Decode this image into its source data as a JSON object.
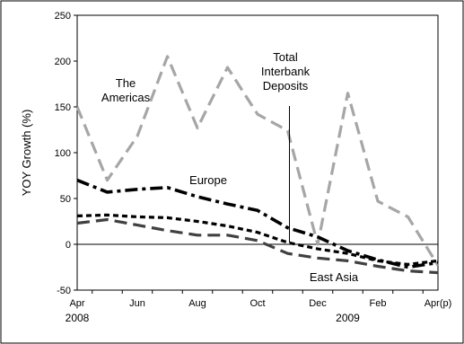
{
  "chart_data": {
    "type": "line",
    "title": "",
    "ylabel": "YOY Growth (%)",
    "ylim": [
      -50,
      250
    ],
    "yticks": [
      -50,
      0,
      50,
      100,
      150,
      200,
      250
    ],
    "x": [
      "Apr 2008",
      "May 2008",
      "Jun 2008",
      "Jul 2008",
      "Aug 2008",
      "Sep 2008",
      "Oct 2008",
      "Nov 2008",
      "Dec 2008",
      "Jan 2009",
      "Feb 2009",
      "Mar 2009",
      "Apr 2009"
    ],
    "xtick_labels": [
      "Apr",
      "Jun",
      "Aug",
      "Oct",
      "Dec",
      "Feb",
      "Apr(p)"
    ],
    "year_labels": [
      "2008",
      "2009"
    ],
    "grid": false,
    "legend": "none",
    "series": [
      {
        "name": "The Americas",
        "label_lines": [
          "The",
          "Americas"
        ],
        "color": "#a6a6a6",
        "style": "long-dash",
        "values": [
          150,
          70,
          118,
          205,
          127,
          193,
          142,
          124,
          0,
          165,
          47,
          30,
          -23
        ]
      },
      {
        "name": "Europe",
        "label_lines": [
          "Europe"
        ],
        "color": "#000000",
        "style": "dash-dot",
        "values": [
          70,
          57,
          60,
          62,
          52,
          44,
          37,
          18,
          8,
          -7,
          -17,
          -25,
          -20
        ]
      },
      {
        "name": "Total Interbank Deposits",
        "label_lines": [
          "Total",
          "Interbank",
          "Deposits"
        ],
        "color": "#000000",
        "style": "short-dash",
        "values": [
          31,
          32,
          30,
          29,
          25,
          20,
          13,
          2,
          -5,
          -10,
          -18,
          -22,
          -18
        ]
      },
      {
        "name": "East Asia",
        "label_lines": [
          "East Asia"
        ],
        "color": "#404040",
        "style": "long-dash",
        "values": [
          23,
          27,
          21,
          15,
          10,
          10,
          4,
          -10,
          -15,
          -18,
          -24,
          -29,
          -31
        ]
      }
    ]
  }
}
